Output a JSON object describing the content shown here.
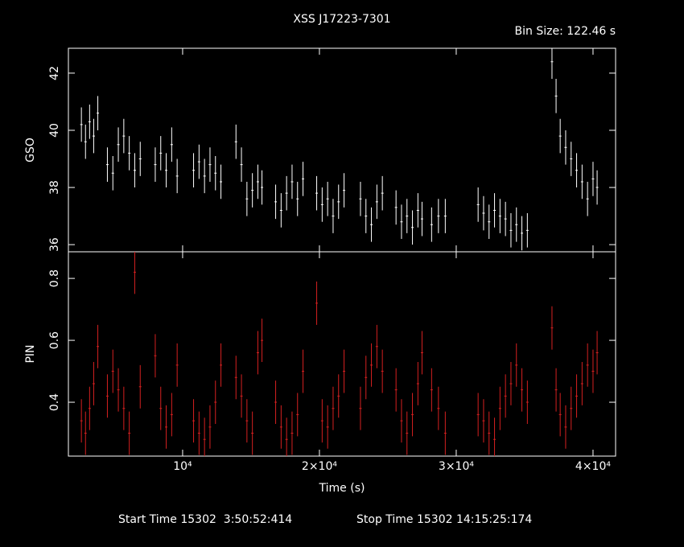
{
  "chart_data": {
    "type": "errorbar",
    "title": "XSS J17223-7301",
    "subtitle": "Bin Size: 122.46 s",
    "xlabel": "Time (s)",
    "xlim": [
      1650,
      41650
    ],
    "xticks": [
      {
        "value": 10000,
        "label": "10⁴"
      },
      {
        "value": 20000,
        "label": "2×10⁴"
      },
      {
        "value": 30000,
        "label": "3×10⁴"
      },
      {
        "value": 40000,
        "label": "4×10⁴"
      }
    ],
    "x": [
      2600,
      2900,
      3200,
      3500,
      3800,
      4500,
      4900,
      5300,
      5700,
      6100,
      6500,
      6900,
      8000,
      8400,
      8800,
      9200,
      9600,
      10800,
      11200,
      11600,
      12000,
      12400,
      12800,
      13900,
      14300,
      14700,
      15100,
      15500,
      15800,
      16800,
      17200,
      17600,
      18000,
      18400,
      18800,
      19800,
      20200,
      20600,
      21000,
      21400,
      21800,
      23000,
      23400,
      23800,
      24200,
      24600,
      25600,
      26000,
      26400,
      26800,
      27200,
      27500,
      28200,
      28700,
      29200,
      31600,
      32000,
      32400,
      32800,
      33200,
      33600,
      34000,
      34400,
      34800,
      35200,
      37000,
      37300,
      37600,
      38000,
      38400,
      38800,
      39200,
      39600,
      40000,
      40300
    ],
    "panels": [
      {
        "ylabel": "GSO",
        "ylim": [
          35.75,
          42.87
        ],
        "yticks": [
          36,
          38,
          40,
          42
        ],
        "series": [
          {
            "color": "#ffffff",
            "values": [
              40.2,
              39.6,
              40.3,
              39.8,
              40.6,
              38.8,
              38.5,
              39.5,
              39.8,
              39.2,
              38.6,
              39.0,
              38.8,
              39.2,
              38.6,
              39.5,
              38.4,
              38.6,
              38.9,
              38.4,
              38.8,
              38.5,
              38.2,
              39.6,
              38.8,
              37.6,
              37.9,
              38.2,
              38.0,
              37.5,
              37.2,
              37.8,
              38.2,
              37.6,
              38.3,
              37.8,
              37.4,
              37.6,
              37.0,
              37.5,
              37.9,
              37.6,
              37.0,
              36.7,
              37.5,
              37.8,
              37.3,
              36.8,
              37.0,
              36.6,
              37.2,
              36.9,
              36.7,
              37.0,
              37.0,
              37.4,
              37.1,
              36.8,
              37.2,
              37.0,
              36.9,
              36.5,
              36.7,
              36.4,
              36.5,
              42.4,
              41.2,
              39.8,
              39.4,
              39.0,
              38.6,
              38.2,
              37.6,
              38.3,
              38.0
            ],
            "errors": [
              0.6,
              0.6,
              0.6,
              0.6,
              0.6,
              0.6,
              0.6,
              0.6,
              0.6,
              0.6,
              0.6,
              0.6,
              0.6,
              0.6,
              0.6,
              0.6,
              0.6,
              0.6,
              0.6,
              0.6,
              0.6,
              0.6,
              0.6,
              0.6,
              0.6,
              0.6,
              0.6,
              0.6,
              0.6,
              0.6,
              0.6,
              0.6,
              0.6,
              0.6,
              0.6,
              0.6,
              0.6,
              0.6,
              0.6,
              0.6,
              0.6,
              0.6,
              0.6,
              0.6,
              0.6,
              0.6,
              0.6,
              0.6,
              0.6,
              0.6,
              0.6,
              0.6,
              0.6,
              0.6,
              0.6,
              0.6,
              0.6,
              0.6,
              0.6,
              0.6,
              0.6,
              0.6,
              0.6,
              0.6,
              0.6,
              0.6,
              0.6,
              0.6,
              0.6,
              0.6,
              0.6,
              0.6,
              0.6,
              0.6,
              0.6
            ]
          }
        ]
      },
      {
        "ylabel": "PIN",
        "ylim": [
          0.226,
          0.886
        ],
        "yticks": [
          0.4,
          0.6,
          0.8
        ],
        "series": [
          {
            "color": "#d42020",
            "values": [
              0.34,
              0.3,
              0.38,
              0.46,
              0.58,
              0.42,
              0.5,
              0.44,
              0.38,
              0.3,
              0.82,
              0.45,
              0.55,
              0.38,
              0.32,
              0.36,
              0.52,
              0.34,
              0.3,
              0.28,
              0.32,
              0.4,
              0.52,
              0.48,
              0.42,
              0.34,
              0.3,
              0.56,
              0.6,
              0.4,
              0.32,
              0.28,
              0.3,
              0.36,
              0.5,
              0.72,
              0.34,
              0.32,
              0.38,
              0.42,
              0.5,
              0.38,
              0.48,
              0.52,
              0.58,
              0.5,
              0.44,
              0.34,
              0.3,
              0.36,
              0.46,
              0.56,
              0.44,
              0.38,
              0.3,
              0.36,
              0.34,
              0.3,
              0.28,
              0.38,
              0.42,
              0.46,
              0.52,
              0.44,
              0.4,
              0.64,
              0.44,
              0.36,
              0.32,
              0.38,
              0.42,
              0.46,
              0.52,
              0.5,
              0.56
            ],
            "errors": [
              0.07,
              0.07,
              0.07,
              0.07,
              0.07,
              0.07,
              0.07,
              0.07,
              0.07,
              0.07,
              0.07,
              0.07,
              0.07,
              0.07,
              0.07,
              0.07,
              0.07,
              0.07,
              0.07,
              0.07,
              0.07,
              0.07,
              0.07,
              0.07,
              0.07,
              0.07,
              0.07,
              0.07,
              0.07,
              0.07,
              0.07,
              0.07,
              0.07,
              0.07,
              0.07,
              0.07,
              0.07,
              0.07,
              0.07,
              0.07,
              0.07,
              0.07,
              0.07,
              0.07,
              0.07,
              0.07,
              0.07,
              0.07,
              0.07,
              0.07,
              0.07,
              0.07,
              0.07,
              0.07,
              0.07,
              0.07,
              0.07,
              0.07,
              0.07,
              0.07,
              0.07,
              0.07,
              0.07,
              0.07,
              0.07,
              0.07,
              0.07,
              0.07,
              0.07,
              0.07,
              0.07,
              0.07,
              0.07,
              0.07,
              0.07
            ]
          }
        ]
      }
    ],
    "annotations": [
      "Start Time 15302  3:50:52:414",
      "Stop Time 15302 14:15:25:174"
    ]
  }
}
